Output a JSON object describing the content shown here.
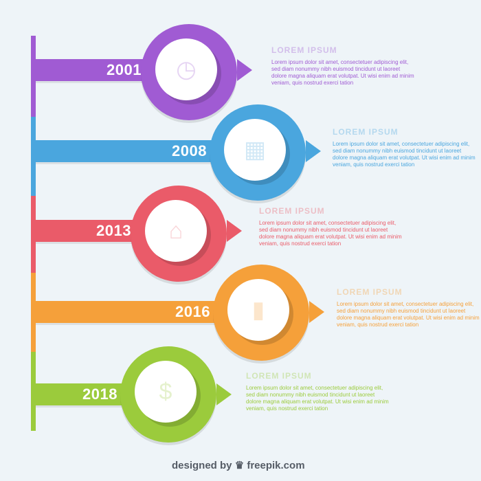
{
  "milestones": [
    {
      "year": "2001",
      "color": "#a05bd3",
      "icon": "stopwatch-icon",
      "heading": "LOREM IPSUM",
      "body": "Lorem ipsum dolor sit amet, consectetuer adipiscing elit, sed diam nonummy nibh euismod tincidunt ut laoreet dolore magna aliquam erat volutpat. Ut wisi enim ad minim veniam, quis nostrud exerci tation"
    },
    {
      "year": "2008",
      "color": "#4aa6de",
      "icon": "calendar-icon",
      "heading": "LOREM IPSUM",
      "body": "Lorem ipsum dolor sit amet, consectetuer adipiscing elit, sed diam nonummy nibh euismod tincidunt ut laoreet dolore magna aliquam erat volutpat. Ut wisi enim ad minim veniam, quis nostrud exerci tation"
    },
    {
      "year": "2013",
      "color": "#ea5b69",
      "icon": "house-icon",
      "heading": "LOREM IPSUM",
      "body": "Lorem ipsum dolor sit amet, consectetuer adipiscing elit, sed diam nonummy nibh euismod tincidunt ut laoreet dolore magna aliquam erat volutpat. Ut wisi enim ad minim veniam, quis nostrud exerci tation"
    },
    {
      "year": "2016",
      "color": "#f5a03a",
      "icon": "bar-chart-icon",
      "heading": "LOREM IPSUM",
      "body": "Lorem ipsum dolor sit amet, consectetuer adipiscing elit, sed diam nonummy nibh euismod tincidunt ut laoreet dolore magna aliquam erat volutpat. Ut wisi enim ad minim veniam, quis nostrud exerci tation"
    },
    {
      "year": "2018",
      "color": "#9bcb3c",
      "icon": "dollar-coin-icon",
      "heading": "LOREM IPSUM",
      "body": "Lorem ipsum dolor sit amet, consectetuer adipiscing elit, sed diam nonummy nibh euismod tincidunt ut laoreet dolore magna aliquam erat volutpat. Ut wisi enim ad minim veniam, quis nostrud exerci tation"
    }
  ],
  "credit": {
    "prefix": "designed by",
    "brand": "freepik.com",
    "icon": "freepik-logo-icon"
  }
}
